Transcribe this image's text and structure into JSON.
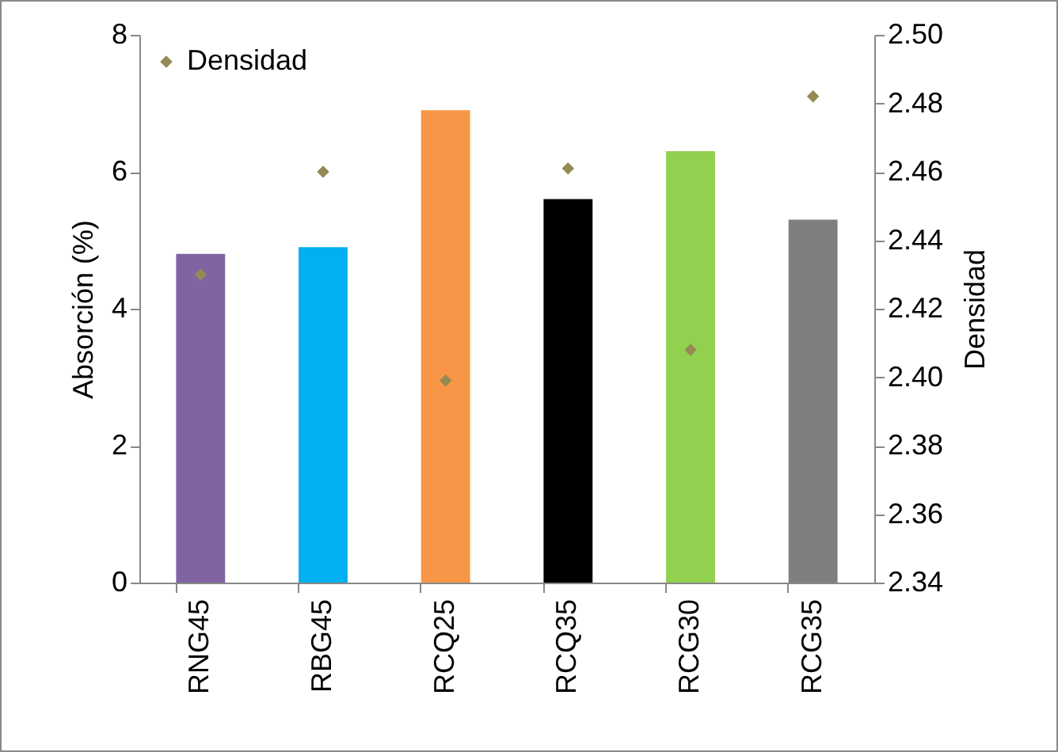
{
  "chart_data": {
    "type": "bar",
    "ylabel": "Absorción (%)",
    "y2label": "Densidad",
    "categories": [
      "RNG45",
      "RBG45",
      "RCQ25",
      "RCQ35",
      "RCG30",
      "RCG35"
    ],
    "series": [
      {
        "values": [
          4.8,
          4.9,
          6.9,
          5.6,
          6.3,
          5.3
        ],
        "colors": [
          "#8064a2",
          "#00b0f0",
          "#f79646",
          "#000000",
          "#92d050",
          "#7f7f7f"
        ]
      },
      {
        "type": "scatter",
        "name": "Densidad",
        "axis": "y2",
        "color": "#948a54",
        "marker": "diamond",
        "values": [
          2.43,
          2.46,
          2.399,
          2.461,
          2.408,
          2.482
        ]
      }
    ],
    "ylim": [
      0,
      8
    ],
    "yticks": [
      0,
      2,
      4,
      6,
      8
    ],
    "y2lim": [
      2.34,
      2.5
    ],
    "y2ticks": [
      2.34,
      2.36,
      2.38,
      {
        "value": 2.4,
        "label": "2.40"
      },
      2.42,
      2.44,
      2.46,
      2.48,
      {
        "value": 2.5,
        "label": "2.50"
      }
    ],
    "legend": "top left",
    "grid": false
  }
}
